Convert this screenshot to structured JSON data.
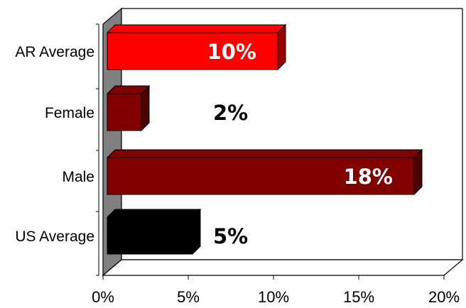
{
  "chart_data": {
    "type": "bar",
    "orientation": "horizontal",
    "style": "3d",
    "title": "",
    "xlabel": "",
    "ylabel": "",
    "categories": [
      "AR Average",
      "Female",
      "Male",
      "US Average"
    ],
    "values": [
      10,
      2,
      18,
      5
    ],
    "data_labels": [
      "10%",
      "2%",
      "18%",
      "5%"
    ],
    "bar_colors": [
      "#ff0000",
      "#800000",
      "#800000",
      "#000000"
    ],
    "data_label_colors": [
      "#ffffff",
      "#000000",
      "#ffffff",
      "#000000"
    ],
    "xlim": [
      0,
      20
    ],
    "x_ticks": [
      0,
      5,
      10,
      15,
      20
    ],
    "x_tick_labels": [
      "0%",
      "5%",
      "10%",
      "15%",
      "20%"
    ],
    "grid": false,
    "legend": "none",
    "wall_color": "#808080"
  }
}
